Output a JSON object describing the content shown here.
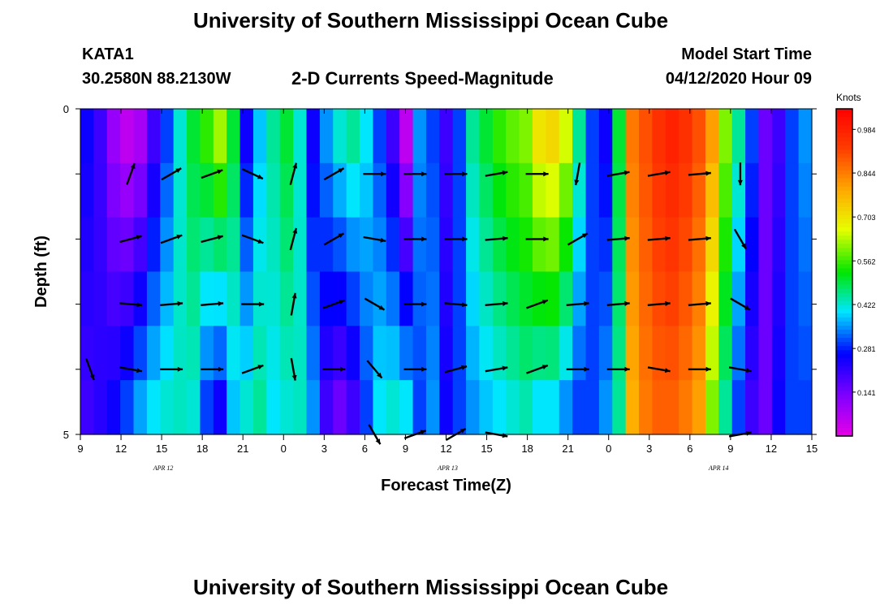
{
  "header": {
    "title_top": "University of Southern Mississippi Ocean Cube",
    "station": "KATA1",
    "coords": "30.2580N 88.2130W",
    "chart_title": "2-D Currents Speed-Magnitude",
    "model_start_label": "Model Start Time",
    "model_start_value": "04/12/2020 Hour 09",
    "title_bottom": "University of Southern Mississippi Ocean Cube"
  },
  "chart_data": {
    "type": "heatmap",
    "title": "2-D Currents Speed-Magnitude",
    "xlabel": "Forecast Time(Z)",
    "ylabel": "Depth (ft)",
    "x_tick_labels": [
      "9",
      "12",
      "15",
      "18",
      "21",
      "0",
      "3",
      "6",
      "9",
      "12",
      "15",
      "18",
      "21",
      "0",
      "3",
      "6",
      "9",
      "12",
      "15"
    ],
    "x_hours_since_start": [
      0,
      3,
      6,
      9,
      12,
      15,
      18,
      21,
      24,
      27,
      30,
      33,
      36,
      39,
      42,
      45,
      48,
      51,
      54
    ],
    "date_labels": [
      {
        "text": "APR 12",
        "hour": 6
      },
      {
        "text": "APR 13",
        "hour": 27
      },
      {
        "text": "APR 14",
        "hour": 47
      }
    ],
    "y_tick_labels": [
      "0",
      "5"
    ],
    "ylim": [
      0,
      5
    ],
    "depth_rows": [
      0,
      1,
      2,
      3,
      4,
      5
    ],
    "colorbar": {
      "label": "Knots",
      "ticks": [
        "0.984",
        "0.844",
        "0.703",
        "0.562",
        "0.422",
        "0.281",
        "0.141"
      ],
      "tick_values": [
        0.984,
        0.844,
        0.703,
        0.562,
        0.422,
        0.281,
        0.141
      ],
      "range": [
        0,
        1.05
      ]
    },
    "surface_speed_by_hour": [
      0.25,
      0.2,
      0.1,
      0.05,
      0.08,
      0.2,
      0.3,
      0.42,
      0.5,
      0.55,
      0.62,
      0.5,
      0.25,
      0.38,
      0.45,
      0.5,
      0.42,
      0.25,
      0.35,
      0.42,
      0.45,
      0.4,
      0.3,
      0.2,
      0.05,
      0.35,
      0.3,
      0.2,
      0.3,
      0.45,
      0.5,
      0.55,
      0.58,
      0.6,
      0.7,
      0.72,
      0.65,
      0.45,
      0.3,
      0.25,
      0.5,
      0.85,
      0.9,
      0.95,
      0.98,
      0.95,
      0.9,
      0.8,
      0.6,
      0.45,
      0.3,
      0.15,
      0.2,
      0.3,
      0.35
    ],
    "deep_speed_by_hour": [
      0.2,
      0.22,
      0.25,
      0.3,
      0.36,
      0.4,
      0.42,
      0.43,
      0.42,
      0.3,
      0.25,
      0.38,
      0.42,
      0.45,
      0.4,
      0.42,
      0.43,
      0.35,
      0.2,
      0.15,
      0.2,
      0.3,
      0.4,
      0.42,
      0.4,
      0.3,
      0.35,
      0.25,
      0.3,
      0.35,
      0.38,
      0.4,
      0.42,
      0.44,
      0.4,
      0.4,
      0.35,
      0.3,
      0.3,
      0.35,
      0.45,
      0.78,
      0.85,
      0.88,
      0.88,
      0.85,
      0.8,
      0.6,
      0.45,
      0.3,
      0.2,
      0.15,
      0.25,
      0.3,
      0.3
    ],
    "vector_hours": [
      0,
      3,
      6,
      9,
      12,
      15,
      18,
      21,
      24,
      27,
      30,
      33,
      36,
      39,
      42,
      45,
      48,
      51,
      54
    ],
    "vectors_deg": [
      [
        null,
        null,
        null,
        null,
        null,
        null,
        null,
        null,
        null,
        null,
        null,
        null,
        null,
        null,
        null,
        null,
        null,
        null,
        null
      ],
      [
        null,
        70,
        30,
        20,
        -25,
        75,
        30,
        0,
        0,
        0,
        10,
        0,
        -100,
        10,
        10,
        5,
        -90,
        null,
        null
      ],
      [
        null,
        15,
        20,
        15,
        -20,
        75,
        30,
        -10,
        0,
        0,
        5,
        0,
        30,
        5,
        5,
        5,
        -60,
        null,
        null
      ],
      [
        null,
        -5,
        5,
        5,
        0,
        80,
        20,
        -30,
        0,
        -5,
        5,
        20,
        5,
        5,
        5,
        5,
        -30,
        null,
        null
      ],
      [
        -70,
        -10,
        0,
        0,
        20,
        -80,
        0,
        -50,
        0,
        15,
        10,
        20,
        0,
        0,
        -10,
        0,
        -10,
        null,
        null
      ],
      [
        null,
        null,
        null,
        null,
        null,
        null,
        null,
        -60,
        20,
        30,
        -10,
        null,
        null,
        null,
        null,
        null,
        10,
        null,
        null
      ]
    ]
  }
}
